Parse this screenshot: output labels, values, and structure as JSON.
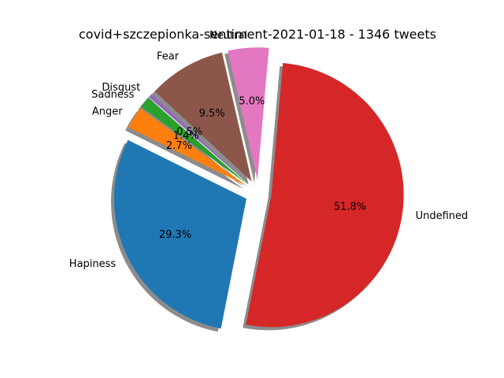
{
  "chart_data": {
    "type": "pie",
    "title": "covid+szczepionka-sentiment-2021-01-18 - 1346 tweets",
    "slices": [
      {
        "label": "Undefined",
        "percent": 51.8,
        "pct_label": "51.8%",
        "color": "#d62728"
      },
      {
        "label": "Hapiness",
        "percent": 29.3,
        "pct_label": "29.3%",
        "color": "#1f77b4"
      },
      {
        "label": "Anger",
        "percent": 2.7,
        "pct_label": "2.7%",
        "color": "#ff7f0e"
      },
      {
        "label": "Sadness",
        "percent": 1.4,
        "pct_label": "1.4%",
        "color": "#2ca02c"
      },
      {
        "label": "Disgust",
        "percent": 0.5,
        "pct_label": "0.5%",
        "color": "#9467bd"
      },
      {
        "label": "Fear",
        "percent": 9.5,
        "pct_label": "9.5%",
        "color": "#8c564b"
      },
      {
        "label": "Neutral",
        "percent": 5.0,
        "pct_label": "5.0%",
        "color": "#e377c2"
      }
    ],
    "shadow": true,
    "exploded": true
  }
}
